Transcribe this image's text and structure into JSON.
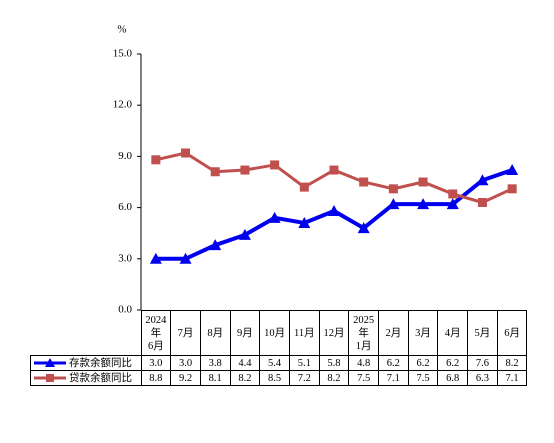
{
  "chart_data": {
    "type": "line",
    "y_label": "%",
    "categories": [
      "2024\n年\n6月",
      "7月",
      "8月",
      "9月",
      "10月",
      "11月",
      "12月",
      "2025\n年\n1月",
      "2月",
      "3月",
      "4月",
      "5月",
      "6月"
    ],
    "ylim": [
      0,
      15
    ],
    "yticks": [
      {
        "value": 0,
        "label": "0.0"
      },
      {
        "value": 3,
        "label": "3.0"
      },
      {
        "value": 6,
        "label": "6.0"
      },
      {
        "value": 9,
        "label": "9.0"
      },
      {
        "value": 12,
        "label": "12.0"
      },
      {
        "value": 15,
        "label": "15.0"
      }
    ],
    "series": [
      {
        "name": "存款余额同比",
        "color": "#0000ee",
        "marker": "triangle",
        "values": [
          3.0,
          3.0,
          3.8,
          4.4,
          5.4,
          5.1,
          5.8,
          4.8,
          6.2,
          6.2,
          6.2,
          7.6,
          8.2
        ],
        "value_labels": [
          "3.0",
          "3.0",
          "3.8",
          "4.4",
          "5.4",
          "5.1",
          "5.8",
          "4.8",
          "6.2",
          "6.2",
          "6.2",
          "7.6",
          "8.2"
        ]
      },
      {
        "name": "贷款余额同比",
        "color": "#c0504d",
        "marker": "square",
        "values": [
          8.8,
          9.2,
          8.1,
          8.2,
          8.5,
          7.2,
          8.2,
          7.5,
          7.1,
          7.5,
          6.8,
          6.3,
          7.1
        ],
        "value_labels": [
          "8.8",
          "9.2",
          "8.1",
          "8.2",
          "8.5",
          "7.2",
          "8.2",
          "7.5",
          "7.1",
          "7.5",
          "6.8",
          "6.3",
          "7.1"
        ]
      }
    ]
  }
}
